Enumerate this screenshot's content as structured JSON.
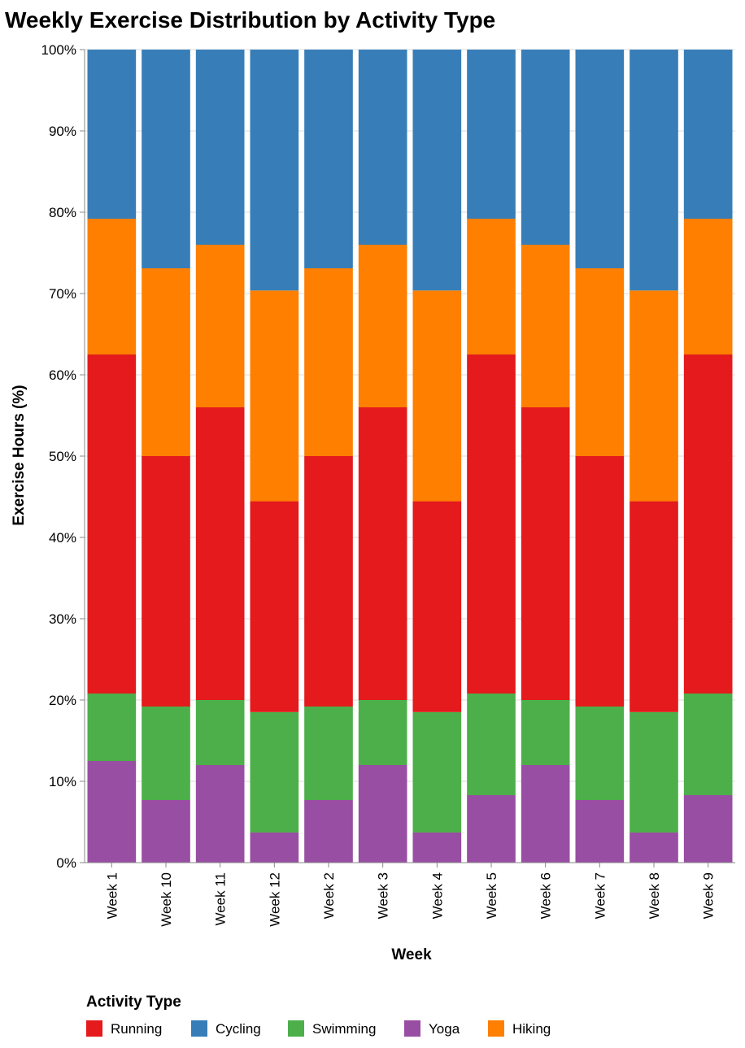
{
  "chart_data": {
    "type": "bar",
    "stacked": "normalize",
    "title": "Weekly Exercise Distribution by Activity Type",
    "xlabel": "Week",
    "ylabel": "Exercise Hours (%)",
    "ylim": [
      0,
      100
    ],
    "y_ticks": [
      "0%",
      "10%",
      "20%",
      "30%",
      "40%",
      "50%",
      "60%",
      "70%",
      "80%",
      "90%",
      "100%"
    ],
    "grid": true,
    "categories": [
      "Week 1",
      "Week 10",
      "Week 11",
      "Week 12",
      "Week 2",
      "Week 3",
      "Week 4",
      "Week 5",
      "Week 6",
      "Week 7",
      "Week 8",
      "Week 9"
    ],
    "stack_order": [
      "Yoga",
      "Swimming",
      "Running",
      "Hiking",
      "Cycling"
    ],
    "series": [
      {
        "name": "Running",
        "color": "#e41a1c",
        "values": [
          41.7,
          30.8,
          36.0,
          25.9,
          30.8,
          36.0,
          25.9,
          41.7,
          36.0,
          30.8,
          25.9,
          41.7
        ]
      },
      {
        "name": "Cycling",
        "color": "#377eb8",
        "values": [
          20.8,
          26.9,
          24.0,
          29.6,
          26.9,
          24.0,
          29.6,
          20.8,
          24.0,
          26.9,
          29.6,
          20.8
        ]
      },
      {
        "name": "Swimming",
        "color": "#4daf4a",
        "values": [
          8.3,
          11.5,
          8.0,
          14.8,
          11.5,
          8.0,
          14.8,
          12.5,
          8.0,
          11.5,
          14.8,
          12.5
        ]
      },
      {
        "name": "Yoga",
        "color": "#984ea3",
        "values": [
          12.5,
          7.7,
          12.0,
          3.7,
          7.7,
          12.0,
          3.7,
          8.3,
          12.0,
          7.7,
          3.7,
          8.3
        ]
      },
      {
        "name": "Hiking",
        "color": "#ff7f00",
        "values": [
          16.7,
          23.1,
          20.0,
          25.9,
          23.1,
          20.0,
          25.9,
          16.7,
          20.0,
          23.1,
          25.9,
          16.7
        ]
      }
    ],
    "legend": {
      "title": "Activity Type",
      "position": "bottom-left"
    }
  }
}
